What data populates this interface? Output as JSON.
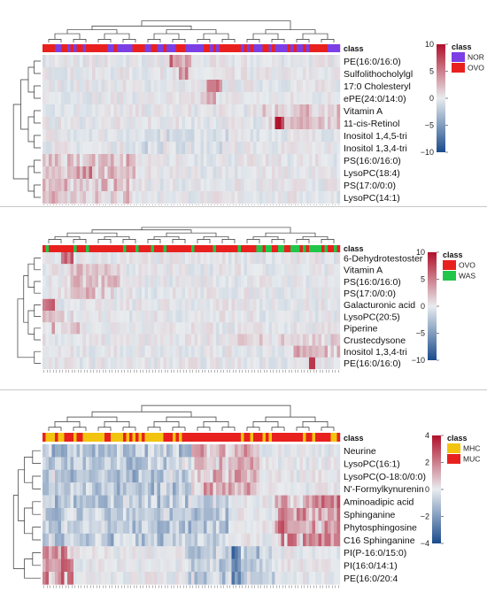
{
  "chart_data": [
    {
      "type": "heatmap",
      "title": "",
      "class_label": "class",
      "classes": [
        {
          "name": "NOR",
          "color": "#7b3fe4"
        },
        {
          "name": "OVO",
          "color": "#e8211f"
        }
      ],
      "n_columns": 96,
      "rows": [
        "PE(16:0/16:0)",
        "Sulfolithocholylgl",
        "17:0 Cholesteryl",
        "ePE(24:0/14:0)",
        "Vitamin A",
        "11-cis-Retinol",
        "Inositol 1,4,5-tri",
        "Inositol 1,3,4-tri",
        "PS(16:0/16:0)",
        "LysoPC(18:4)",
        "PS(17:0/0:0)",
        "LysoPC(14:1)"
      ],
      "colorscale": {
        "min": -10,
        "max": 10,
        "ticks": [
          10,
          5,
          0,
          -5,
          -10
        ],
        "low_color": "#1a4b8c",
        "mid_color": "#e8ecef",
        "high_color": "#b0102a"
      }
    },
    {
      "type": "heatmap",
      "title": "",
      "class_label": "class",
      "classes": [
        {
          "name": "OVO",
          "color": "#e8211f"
        },
        {
          "name": "WAS",
          "color": "#22c64a"
        }
      ],
      "n_columns": 96,
      "rows": [
        "6-Dehydrotestoster",
        "Vitamin A",
        "PS(16:0/16:0)",
        "PS(17:0/0:0)",
        "Galacturonic acid",
        "LysoPC(20:5)",
        "Piperine",
        "Crustecdysone",
        "Inositol 1,3,4-tri",
        "PE(16:0/16:0)"
      ],
      "colorscale": {
        "min": -10,
        "max": 10,
        "ticks": [
          10,
          5,
          0,
          -5,
          -10
        ],
        "low_color": "#1a4b8c",
        "mid_color": "#e8ecef",
        "high_color": "#b0102a"
      }
    },
    {
      "type": "heatmap",
      "title": "",
      "class_label": "class",
      "classes": [
        {
          "name": "MHC",
          "color": "#f2c40f"
        },
        {
          "name": "MUC",
          "color": "#e8211f"
        }
      ],
      "n_columns": 96,
      "rows": [
        "Neurine",
        "LysoPC(16:1)",
        "LysoPC(O-18:0/0:0)",
        "N'-Formylkynurenin",
        "Aminoadipic acid",
        "Sphinganine",
        "Phytosphingosine",
        "C16 Sphinganine",
        "PI(P-16:0/15:0)",
        "PI(16:0/14:1)",
        "PE(16:0/20:4"
      ],
      "colorscale": {
        "min": -4,
        "max": 4,
        "ticks": [
          4,
          2,
          0,
          -2,
          -4
        ],
        "low_color": "#1a4b8c",
        "mid_color": "#e8ecef",
        "high_color": "#b0102a"
      }
    }
  ]
}
